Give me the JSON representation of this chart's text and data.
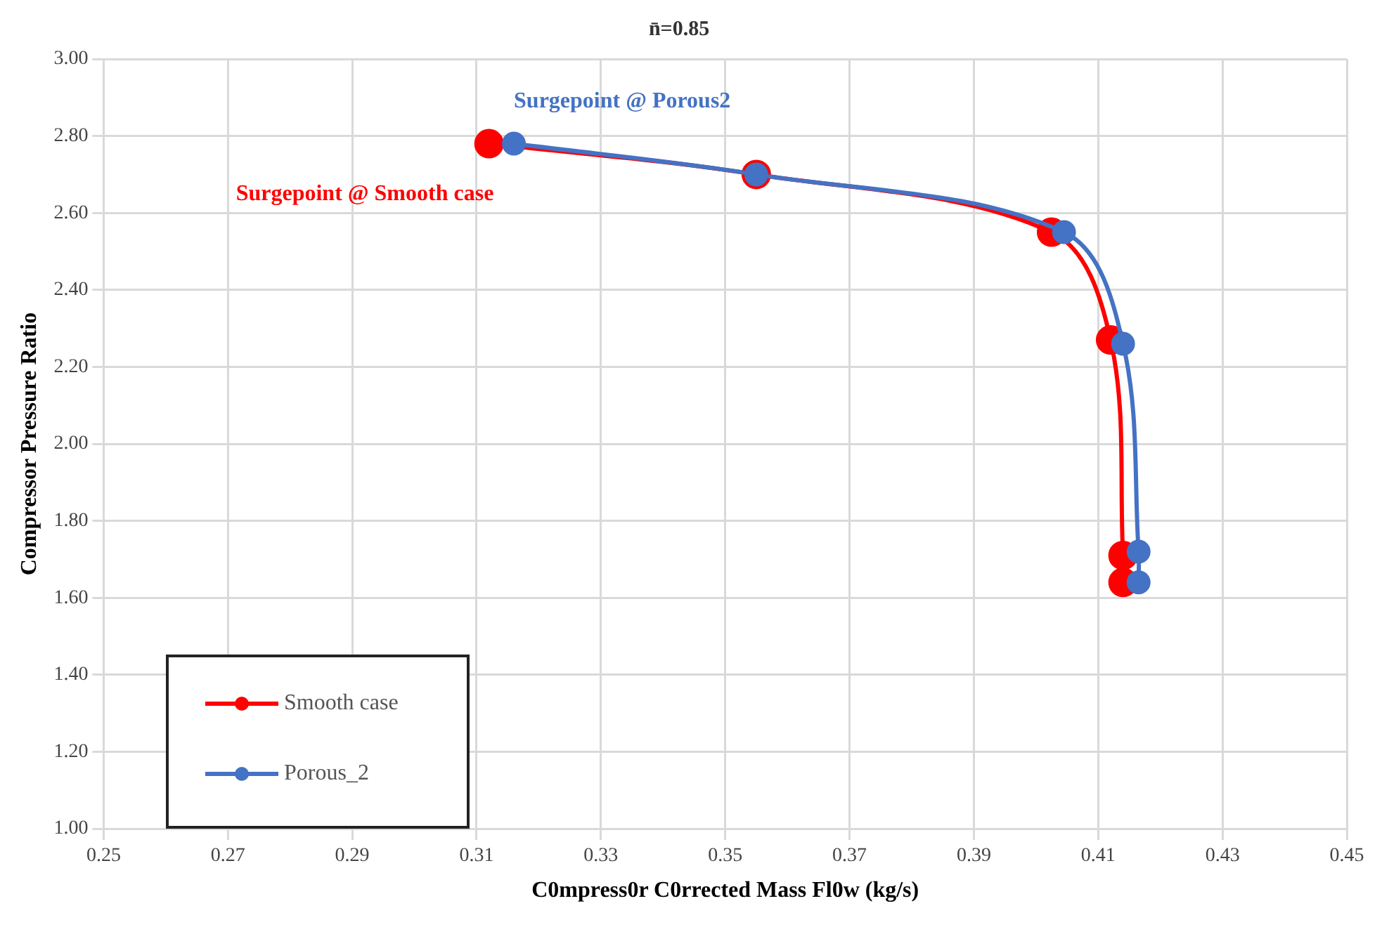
{
  "chart_data": {
    "type": "line",
    "title": "n̄=0.85",
    "xlabel": "C0mpress0r C0rrected Mass Fl0w (kg/s)",
    "ylabel": "Compressor Pressure Ratio",
    "xlim": [
      0.25,
      0.45
    ],
    "xticks": [
      {
        "value": 0.25,
        "label": "0.25"
      },
      {
        "value": 0.27,
        "label": "0.27"
      },
      {
        "value": 0.29,
        "label": "0.29"
      },
      {
        "value": 0.31,
        "label": "0.31"
      },
      {
        "value": 0.33,
        "label": "0.33"
      },
      {
        "value": 0.35,
        "label": "0.35"
      },
      {
        "value": 0.37,
        "label": "0.37"
      },
      {
        "value": 0.39,
        "label": "0.39"
      },
      {
        "value": 0.41,
        "label": "0.41"
      },
      {
        "value": 0.43,
        "label": "0.43"
      },
      {
        "value": 0.45,
        "label": "0.45"
      }
    ],
    "ylim": [
      1.0,
      3.0
    ],
    "yticks": [
      {
        "value": 1,
        "label": "1.00"
      },
      {
        "value": 1.2,
        "label": "1.20"
      },
      {
        "value": 1.4,
        "label": "1.40"
      },
      {
        "value": 1.6,
        "label": "1.60"
      },
      {
        "value": 1.8,
        "label": "1.80"
      },
      {
        "value": 2,
        "label": "2.00"
      },
      {
        "value": 2.2,
        "label": "2.20"
      },
      {
        "value": 2.4,
        "label": "2.40"
      },
      {
        "value": 2.6,
        "label": "2.60"
      },
      {
        "value": 2.8,
        "label": "2.80"
      },
      {
        "value": 3,
        "label": "3.00"
      }
    ],
    "series": [
      {
        "name": "Smooth case",
        "color": "#ff0000",
        "x": [
          0.312,
          0.355,
          0.4025,
          0.412,
          0.414,
          0.414
        ],
        "values": [
          2.78,
          2.7,
          2.55,
          2.27,
          1.71,
          1.64
        ]
      },
      {
        "name": "Porous_2",
        "color": "#4472c4",
        "x": [
          0.316,
          0.355,
          0.4045,
          0.414,
          0.4165,
          0.4165
        ],
        "values": [
          2.78,
          2.7,
          2.55,
          2.26,
          1.72,
          1.64
        ]
      }
    ],
    "annotations": [
      {
        "text": "Surgepoint @ Smooth case",
        "x": 0.312,
        "y": 2.78
      },
      {
        "text": "Surgepoint @ Porous2",
        "x": 0.316,
        "y": 2.78
      }
    ],
    "grid": true,
    "legend": "bottom left",
    "marker": "circle",
    "line_style": "solid"
  }
}
